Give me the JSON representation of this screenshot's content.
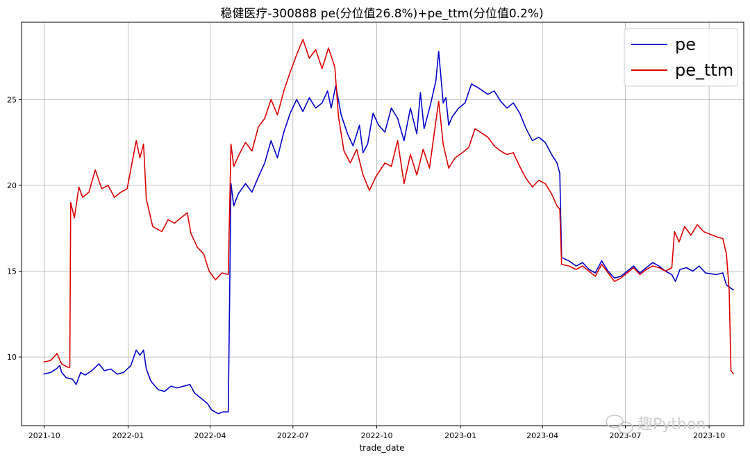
{
  "chart_data": {
    "type": "line",
    "title": "稳健医疗-300888 pe(分位值26.8%)+pe_ttm(分位值0.2%)",
    "xlabel": "trade_date",
    "ylabel": "",
    "xlim": [
      "2021-09-06",
      "2023-11-08"
    ],
    "ylim": [
      6.0,
      29.5
    ],
    "x_ticks": [
      "2021-10",
      "2022-01",
      "2022-04",
      "2022-07",
      "2022-10",
      "2023-01",
      "2023-04",
      "2023-07",
      "2023-10"
    ],
    "x_tick_dates": [
      "2021-10-01",
      "2022-01-01",
      "2022-04-01",
      "2022-07-01",
      "2022-10-01",
      "2023-01-01",
      "2023-04-01",
      "2023-07-01",
      "2023-10-01"
    ],
    "y_ticks": [
      10,
      15,
      20,
      25
    ],
    "grid": true,
    "legend": "top-right",
    "series": [
      {
        "name": "pe",
        "color": "#0000cc",
        "points": [
          [
            "2021-09-30",
            9.0
          ],
          [
            "2021-10-08",
            9.1
          ],
          [
            "2021-10-14",
            9.3
          ],
          [
            "2021-10-18",
            9.5
          ],
          [
            "2021-10-20",
            9.1
          ],
          [
            "2021-10-25",
            8.8
          ],
          [
            "2021-11-01",
            8.7
          ],
          [
            "2021-11-05",
            8.4
          ],
          [
            "2021-11-10",
            9.1
          ],
          [
            "2021-11-15",
            8.95
          ],
          [
            "2021-11-22",
            9.2
          ],
          [
            "2021-11-30",
            9.6
          ],
          [
            "2021-12-06",
            9.2
          ],
          [
            "2021-12-13",
            9.3
          ],
          [
            "2021-12-20",
            9.0
          ],
          [
            "2021-12-27",
            9.1
          ],
          [
            "2022-01-04",
            9.5
          ],
          [
            "2022-01-10",
            10.4
          ],
          [
            "2022-01-14",
            10.1
          ],
          [
            "2022-01-18",
            10.4
          ],
          [
            "2022-01-21",
            9.3
          ],
          [
            "2022-01-26",
            8.6
          ],
          [
            "2022-02-03",
            8.1
          ],
          [
            "2022-02-10",
            8.0
          ],
          [
            "2022-02-17",
            8.3
          ],
          [
            "2022-02-24",
            8.2
          ],
          [
            "2022-03-03",
            8.3
          ],
          [
            "2022-03-10",
            8.4
          ],
          [
            "2022-03-15",
            7.9
          ],
          [
            "2022-03-22",
            7.6
          ],
          [
            "2022-03-29",
            7.3
          ],
          [
            "2022-04-03",
            6.9
          ],
          [
            "2022-04-10",
            6.7
          ],
          [
            "2022-04-15",
            6.8
          ],
          [
            "2022-04-21",
            6.8
          ],
          [
            "2022-04-24",
            20.1
          ],
          [
            "2022-04-27",
            18.8
          ],
          [
            "2022-05-02",
            19.5
          ],
          [
            "2022-05-10",
            20.1
          ],
          [
            "2022-05-17",
            19.6
          ],
          [
            "2022-05-25",
            20.6
          ],
          [
            "2022-05-31",
            21.3
          ],
          [
            "2022-06-07",
            22.6
          ],
          [
            "2022-06-14",
            21.6
          ],
          [
            "2022-06-21",
            23.1
          ],
          [
            "2022-06-28",
            24.2
          ],
          [
            "2022-07-05",
            25.0
          ],
          [
            "2022-07-12",
            24.3
          ],
          [
            "2022-07-19",
            25.1
          ],
          [
            "2022-07-26",
            24.5
          ],
          [
            "2022-08-02",
            24.8
          ],
          [
            "2022-08-08",
            25.5
          ],
          [
            "2022-08-12",
            24.5
          ],
          [
            "2022-08-17",
            25.8
          ],
          [
            "2022-08-23",
            24.1
          ],
          [
            "2022-08-30",
            23.0
          ],
          [
            "2022-09-05",
            22.3
          ],
          [
            "2022-09-12",
            23.5
          ],
          [
            "2022-09-16",
            21.9
          ],
          [
            "2022-09-21",
            22.4
          ],
          [
            "2022-09-27",
            24.2
          ],
          [
            "2022-10-03",
            23.5
          ],
          [
            "2022-10-10",
            23.1
          ],
          [
            "2022-10-17",
            24.5
          ],
          [
            "2022-10-24",
            23.9
          ],
          [
            "2022-10-31",
            22.6
          ],
          [
            "2022-11-07",
            24.5
          ],
          [
            "2022-11-14",
            23.0
          ],
          [
            "2022-11-18",
            25.4
          ],
          [
            "2022-11-22",
            23.3
          ],
          [
            "2022-11-29",
            24.7
          ],
          [
            "2022-12-05",
            26.1
          ],
          [
            "2022-12-08",
            27.8
          ],
          [
            "2022-12-13",
            24.8
          ],
          [
            "2022-12-16",
            25.1
          ],
          [
            "2022-12-19",
            23.5
          ],
          [
            "2022-12-23",
            24.0
          ],
          [
            "2022-12-30",
            24.5
          ],
          [
            "2023-01-06",
            24.8
          ],
          [
            "2023-01-13",
            25.9
          ],
          [
            "2023-01-20",
            25.7
          ],
          [
            "2023-01-31",
            25.3
          ],
          [
            "2023-02-07",
            25.5
          ],
          [
            "2023-02-14",
            24.9
          ],
          [
            "2023-02-21",
            24.5
          ],
          [
            "2023-02-28",
            24.8
          ],
          [
            "2023-03-07",
            24.2
          ],
          [
            "2023-03-14",
            23.3
          ],
          [
            "2023-03-21",
            22.6
          ],
          [
            "2023-03-28",
            22.8
          ],
          [
            "2023-04-04",
            22.5
          ],
          [
            "2023-04-11",
            21.8
          ],
          [
            "2023-04-17",
            21.3
          ],
          [
            "2023-04-20",
            20.7
          ],
          [
            "2023-04-22",
            15.8
          ],
          [
            "2023-04-30",
            15.6
          ],
          [
            "2023-05-08",
            15.3
          ],
          [
            "2023-05-15",
            15.5
          ],
          [
            "2023-05-22",
            15.1
          ],
          [
            "2023-05-29",
            14.9
          ],
          [
            "2023-06-05",
            15.6
          ],
          [
            "2023-06-12",
            15.0
          ],
          [
            "2023-06-19",
            14.6
          ],
          [
            "2023-06-26",
            14.7
          ],
          [
            "2023-07-03",
            15.0
          ],
          [
            "2023-07-10",
            15.3
          ],
          [
            "2023-07-17",
            14.9
          ],
          [
            "2023-07-24",
            15.2
          ],
          [
            "2023-07-31",
            15.5
          ],
          [
            "2023-08-07",
            15.3
          ],
          [
            "2023-08-14",
            15.0
          ],
          [
            "2023-08-21",
            14.8
          ],
          [
            "2023-08-25",
            14.4
          ],
          [
            "2023-08-30",
            15.1
          ],
          [
            "2023-09-06",
            15.2
          ],
          [
            "2023-09-13",
            15.0
          ],
          [
            "2023-09-20",
            15.3
          ],
          [
            "2023-09-27",
            14.9
          ],
          [
            "2023-10-09",
            14.8
          ],
          [
            "2023-10-16",
            14.9
          ],
          [
            "2023-10-20",
            14.2
          ],
          [
            "2023-10-25",
            14.0
          ],
          [
            "2023-10-28",
            13.9
          ]
        ]
      },
      {
        "name": "pe_ttm",
        "color": "#dd0000",
        "points": [
          [
            "2021-09-30",
            9.7
          ],
          [
            "2021-10-08",
            9.8
          ],
          [
            "2021-10-15",
            10.2
          ],
          [
            "2021-10-20",
            9.6
          ],
          [
            "2021-10-27",
            9.4
          ],
          [
            "2021-10-29",
            9.4
          ],
          [
            "2021-10-30",
            19.0
          ],
          [
            "2021-11-03",
            18.1
          ],
          [
            "2021-11-08",
            19.9
          ],
          [
            "2021-11-12",
            19.3
          ],
          [
            "2021-11-19",
            19.6
          ],
          [
            "2021-11-26",
            20.9
          ],
          [
            "2021-12-03",
            19.8
          ],
          [
            "2021-12-10",
            20.0
          ],
          [
            "2021-12-17",
            19.3
          ],
          [
            "2021-12-24",
            19.6
          ],
          [
            "2021-12-31",
            19.8
          ],
          [
            "2022-01-06",
            21.5
          ],
          [
            "2022-01-10",
            22.6
          ],
          [
            "2022-01-14",
            21.6
          ],
          [
            "2022-01-18",
            22.4
          ],
          [
            "2022-01-21",
            19.2
          ],
          [
            "2022-01-28",
            17.6
          ],
          [
            "2022-02-07",
            17.3
          ],
          [
            "2022-02-14",
            18.0
          ],
          [
            "2022-02-21",
            17.8
          ],
          [
            "2022-02-28",
            18.1
          ],
          [
            "2022-03-07",
            18.4
          ],
          [
            "2022-03-11",
            17.2
          ],
          [
            "2022-03-18",
            16.4
          ],
          [
            "2022-03-25",
            16.0
          ],
          [
            "2022-03-31",
            15.0
          ],
          [
            "2022-04-07",
            14.5
          ],
          [
            "2022-04-14",
            14.9
          ],
          [
            "2022-04-21",
            14.8
          ],
          [
            "2022-04-24",
            22.4
          ],
          [
            "2022-04-27",
            21.1
          ],
          [
            "2022-05-03",
            21.8
          ],
          [
            "2022-05-10",
            22.5
          ],
          [
            "2022-05-17",
            22.0
          ],
          [
            "2022-05-24",
            23.4
          ],
          [
            "2022-05-31",
            23.9
          ],
          [
            "2022-06-07",
            25.0
          ],
          [
            "2022-06-14",
            24.1
          ],
          [
            "2022-06-21",
            25.5
          ],
          [
            "2022-06-28",
            26.6
          ],
          [
            "2022-07-05",
            27.6
          ],
          [
            "2022-07-12",
            28.5
          ],
          [
            "2022-07-19",
            27.4
          ],
          [
            "2022-07-26",
            27.9
          ],
          [
            "2022-08-02",
            26.8
          ],
          [
            "2022-08-09",
            28.0
          ],
          [
            "2022-08-16",
            26.9
          ],
          [
            "2022-08-20",
            24.0
          ],
          [
            "2022-08-26",
            22.0
          ],
          [
            "2022-09-02",
            21.3
          ],
          [
            "2022-09-09",
            22.1
          ],
          [
            "2022-09-16",
            20.6
          ],
          [
            "2022-09-23",
            19.7
          ],
          [
            "2022-09-30",
            20.5
          ],
          [
            "2022-10-10",
            21.3
          ],
          [
            "2022-10-17",
            21.1
          ],
          [
            "2022-10-24",
            22.6
          ],
          [
            "2022-10-31",
            20.1
          ],
          [
            "2022-11-07",
            21.8
          ],
          [
            "2022-11-14",
            20.6
          ],
          [
            "2022-11-21",
            22.1
          ],
          [
            "2022-11-28",
            21.0
          ],
          [
            "2022-12-02",
            22.6
          ],
          [
            "2022-12-08",
            24.9
          ],
          [
            "2022-12-13",
            22.4
          ],
          [
            "2022-12-19",
            21.0
          ],
          [
            "2022-12-26",
            21.6
          ],
          [
            "2023-01-03",
            21.9
          ],
          [
            "2023-01-10",
            22.2
          ],
          [
            "2023-01-17",
            23.3
          ],
          [
            "2023-01-31",
            22.8
          ],
          [
            "2023-02-07",
            22.3
          ],
          [
            "2023-02-14",
            22.0
          ],
          [
            "2023-02-21",
            21.8
          ],
          [
            "2023-02-28",
            21.9
          ],
          [
            "2023-03-07",
            21.1
          ],
          [
            "2023-03-14",
            20.4
          ],
          [
            "2023-03-21",
            19.9
          ],
          [
            "2023-03-28",
            20.3
          ],
          [
            "2023-04-04",
            20.1
          ],
          [
            "2023-04-11",
            19.5
          ],
          [
            "2023-04-17",
            18.8
          ],
          [
            "2023-04-20",
            18.6
          ],
          [
            "2023-04-22",
            15.4
          ],
          [
            "2023-04-30",
            15.3
          ],
          [
            "2023-05-08",
            15.1
          ],
          [
            "2023-05-15",
            15.3
          ],
          [
            "2023-05-22",
            15.0
          ],
          [
            "2023-05-29",
            14.7
          ],
          [
            "2023-06-05",
            15.4
          ],
          [
            "2023-06-12",
            14.9
          ],
          [
            "2023-06-19",
            14.4
          ],
          [
            "2023-06-26",
            14.6
          ],
          [
            "2023-07-03",
            14.9
          ],
          [
            "2023-07-10",
            15.2
          ],
          [
            "2023-07-17",
            14.8
          ],
          [
            "2023-07-24",
            15.1
          ],
          [
            "2023-07-31",
            15.3
          ],
          [
            "2023-08-07",
            15.2
          ],
          [
            "2023-08-14",
            15.0
          ],
          [
            "2023-08-21",
            15.2
          ],
          [
            "2023-08-24",
            17.3
          ],
          [
            "2023-08-29",
            16.7
          ],
          [
            "2023-09-04",
            17.6
          ],
          [
            "2023-09-11",
            17.1
          ],
          [
            "2023-09-18",
            17.7
          ],
          [
            "2023-09-25",
            17.3
          ],
          [
            "2023-10-09",
            17.0
          ],
          [
            "2023-10-16",
            16.9
          ],
          [
            "2023-10-20",
            16.0
          ],
          [
            "2023-10-23",
            13.9
          ],
          [
            "2023-10-25",
            9.2
          ],
          [
            "2023-10-28",
            9.0
          ]
        ]
      }
    ]
  },
  "watermark": {
    "text": "趣Python",
    "icon": "wechat-icon"
  }
}
